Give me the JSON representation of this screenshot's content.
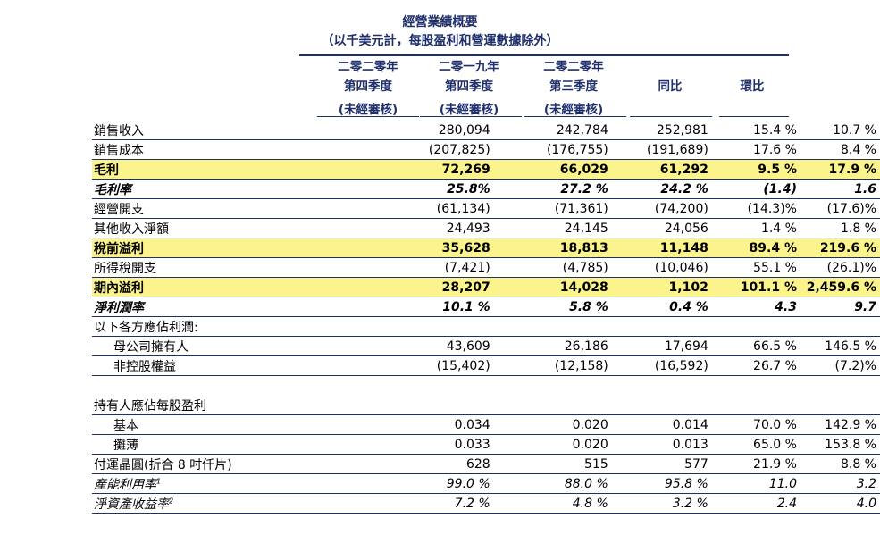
{
  "title": "經營業績概要",
  "subtitle": "（以千美元計，每股盈利和營運數據除外）",
  "columns": [
    {
      "line1": "二零二零年",
      "line2": "第四季度",
      "line3": "(未經審核)"
    },
    {
      "line1": "二零一九年",
      "line2": "第四季度",
      "line3": "(未經審核)"
    },
    {
      "line1": "二零二零年",
      "line2": "第三季度",
      "line3": "(未經審核)"
    },
    {
      "line1": "",
      "line2": "同比",
      "line3": ""
    },
    {
      "line1": "",
      "line2": "環比",
      "line3": ""
    }
  ],
  "rows": [
    {
      "label": "銷售收入",
      "v": [
        "280,094",
        "242,784",
        "252,981",
        "15.4 %",
        "10.7 %"
      ]
    },
    {
      "label": "銷售成本",
      "v": [
        "(207,825)",
        "(176,755)",
        "(191,689)",
        "17.6 %",
        "8.4 %"
      ]
    },
    {
      "label": "毛利",
      "v": [
        "72,269",
        "66,029",
        "61,292",
        "9.5 %",
        "17.9 %"
      ]
    },
    {
      "label": "毛利率",
      "v": [
        "25.8%",
        "27.2 %",
        "24.2 %",
        "(1.4)",
        "1.6"
      ]
    },
    {
      "label": "經營開支",
      "v": [
        "(61,134)",
        "(71,361)",
        "(74,200)",
        "(14.3)%",
        "(17.6)%"
      ]
    },
    {
      "label": "其他收入淨額",
      "v": [
        "24,493",
        "24,145",
        "24,056",
        "1.4 %",
        "1.8 %"
      ]
    },
    {
      "label": "稅前溢利",
      "v": [
        "35,628",
        "18,813",
        "11,148",
        "89.4 %",
        "219.6 %"
      ]
    },
    {
      "label": "所得稅開支",
      "v": [
        "(7,421)",
        "(4,785)",
        "(10,046)",
        "55.1 %",
        "(26.1)%"
      ]
    },
    {
      "label": "期內溢利",
      "v": [
        "28,207",
        "14,028",
        "1,102",
        "101.1 %",
        "2,459.6 %"
      ]
    },
    {
      "label": "淨利潤率",
      "v": [
        "10.1 %",
        "5.8 %",
        "0.4 %",
        "4.3",
        "9.7"
      ]
    },
    {
      "label": "以下各方應佔利潤:",
      "v": [
        "",
        "",
        "",
        "",
        ""
      ]
    },
    {
      "label": "母公司擁有人",
      "v": [
        "43,609",
        "26,186",
        "17,694",
        "66.5 %",
        "146.5 %"
      ]
    },
    {
      "label": "非控股權益",
      "v": [
        "(15,402)",
        "(12,158)",
        "(16,592)",
        "26.7 %",
        "(7.2)%"
      ]
    },
    {
      "label": "",
      "v": [
        "",
        "",
        "",
        "",
        ""
      ]
    },
    {
      "label": "持有人應佔每股盈利",
      "v": [
        "",
        "",
        "",
        "",
        ""
      ]
    },
    {
      "label": "基本",
      "v": [
        "0.034",
        "0.020",
        "0.014",
        "70.0 %",
        "142.9 %"
      ]
    },
    {
      "label": "攤薄",
      "v": [
        "0.033",
        "0.020",
        "0.013",
        "65.0 %",
        "153.8 %"
      ]
    },
    {
      "label": "付運晶圓(折合 8 吋仟片)",
      "v": [
        "628",
        "515",
        "577",
        "21.9 %",
        "8.8 %"
      ]
    },
    {
      "label": "產能利用率",
      "sup": "1",
      "v": [
        "99.0 %",
        "88.0 %",
        "95.8 %",
        "11.0",
        "3.2"
      ]
    },
    {
      "label": "淨資產收益率",
      "sup": "2",
      "v": [
        "7.2 %",
        "4.8 %",
        "3.2 %",
        "2.4",
        "4.0"
      ]
    }
  ]
}
